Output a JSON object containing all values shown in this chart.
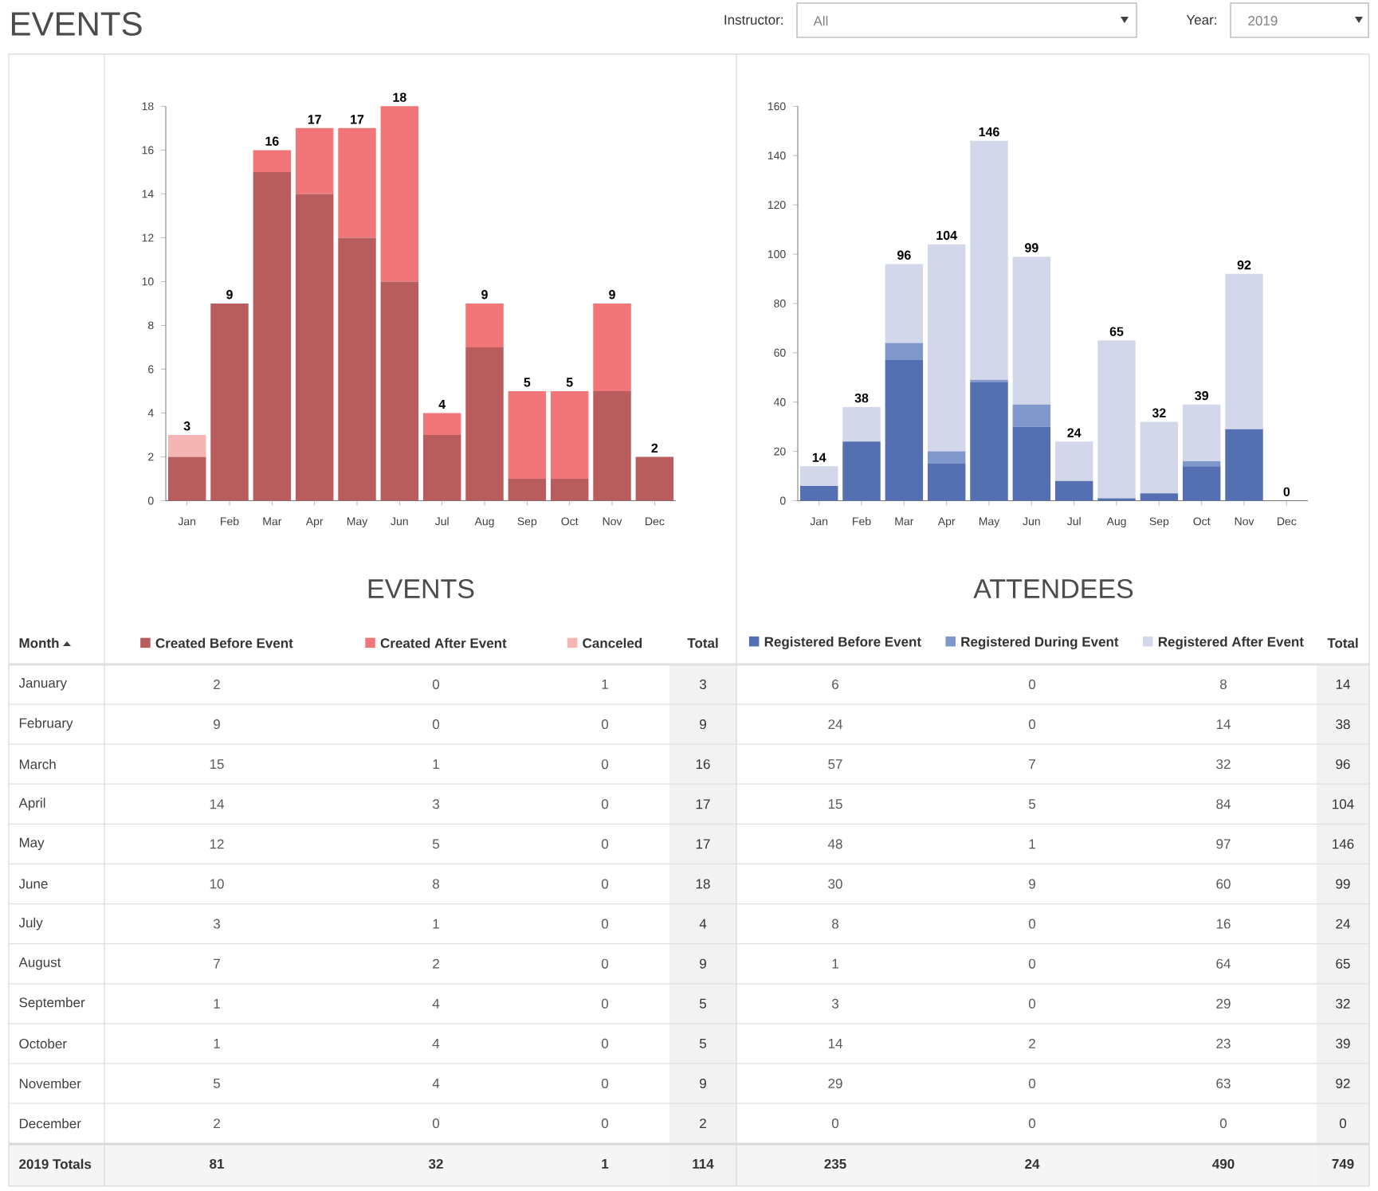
{
  "chart_data": [
    {
      "type": "other",
      "annotations": [
        "EVENTS",
        "Instructor:",
        "All",
        "Year:",
        "2019",
        "Month",
        "January",
        "2",
        "0",
        "1",
        "3",
        "6",
        "0",
        "8",
        "14",
        "February",
        "9",
        "0",
        "0",
        "9",
        "24",
        "0",
        "14",
        "38",
        "March",
        "15",
        "1",
        "0",
        "16",
        "57",
        "7",
        "32",
        "96",
        "April",
        "14",
        "3",
        "0",
        "17",
        "15",
        "5",
        "84",
        "104",
        "May",
        "12",
        "5",
        "0",
        "17",
        "48",
        "1",
        "97",
        "146",
        "June",
        "10",
        "8",
        "0",
        "18",
        "30",
        "9",
        "60",
        "99",
        "July",
        "3",
        "1",
        "0",
        "4",
        "8",
        "0",
        "16",
        "24",
        "August",
        "7",
        "2",
        "0",
        "9",
        "1",
        "0",
        "64",
        "65",
        "September",
        "1",
        "4",
        "0",
        "5",
        "3",
        "0",
        "29",
        "32",
        "October",
        "1",
        "4",
        "0",
        "5",
        "14",
        "2",
        "23",
        "39",
        "November",
        "5",
        "4",
        "0",
        "9",
        "29",
        "0",
        "63",
        "92",
        "December",
        "2",
        "0",
        "0",
        "2",
        "0",
        "0",
        "0",
        "0",
        "2019 Totals",
        "81",
        "32",
        "1",
        "114",
        "235",
        "24",
        "490",
        "749"
      ]
    },
    {
      "type": "bar",
      "title": "EVENTS",
      "categories": [
        "Jan",
        "Feb",
        "Mar",
        "Apr",
        "May",
        "Jun",
        "Jul",
        "Aug",
        "Sep",
        "Oct",
        "Nov",
        "Dec"
      ],
      "stacked": true,
      "legend": "bottom",
      "ylim": [
        0,
        18
      ],
      "yticks": [
        0,
        2,
        4,
        6,
        8,
        10,
        12,
        14,
        16,
        18
      ],
      "series": [
        {
          "name": "Created Before Event",
          "color": "#b85c5e",
          "values": [
            2,
            9,
            15,
            14,
            12,
            10,
            3,
            7,
            1,
            1,
            5,
            2
          ]
        },
        {
          "name": "Created After Event",
          "color": "#f17677",
          "values": [
            0,
            0,
            1,
            3,
            5,
            8,
            1,
            2,
            4,
            4,
            4,
            0
          ]
        },
        {
          "name": "Canceled",
          "color": "#f6b5b5",
          "values": [
            1,
            0,
            0,
            0,
            0,
            0,
            0,
            0,
            0,
            0,
            0,
            0
          ]
        }
      ],
      "totals": [
        "3",
        "9",
        "16",
        "17",
        "17",
        "18",
        "4",
        "9",
        "5",
        "5",
        "9",
        "2"
      ],
      "annotations": [
        "Total"
      ]
    },
    {
      "type": "bar",
      "title": "ATTENDEES",
      "categories": [
        "Jan",
        "Feb",
        "Mar",
        "Apr",
        "May",
        "Jun",
        "Jul",
        "Aug",
        "Sep",
        "Oct",
        "Nov",
        "Dec"
      ],
      "stacked": true,
      "legend": "bottom",
      "ylim": [
        0,
        160
      ],
      "yticks": [
        0,
        20,
        40,
        60,
        80,
        100,
        120,
        140,
        160
      ],
      "series": [
        {
          "name": "Registered Before Event",
          "color": "#5470b3",
          "values": [
            6,
            24,
            57,
            15,
            48,
            30,
            8,
            1,
            3,
            14,
            29,
            0
          ]
        },
        {
          "name": "Registered During Event",
          "color": "#8097cb",
          "values": [
            0,
            0,
            7,
            5,
            1,
            9,
            0,
            0,
            0,
            2,
            0,
            0
          ]
        },
        {
          "name": "Registered After Event",
          "color": "#d3d7ea",
          "values": [
            8,
            14,
            32,
            84,
            97,
            60,
            16,
            64,
            29,
            23,
            63,
            0
          ]
        }
      ],
      "totals": [
        "14",
        "38",
        "96",
        "104",
        "146",
        "99",
        "24",
        "65",
        "32",
        "39",
        "92",
        "0"
      ],
      "annotations": [
        "Total"
      ]
    }
  ]
}
